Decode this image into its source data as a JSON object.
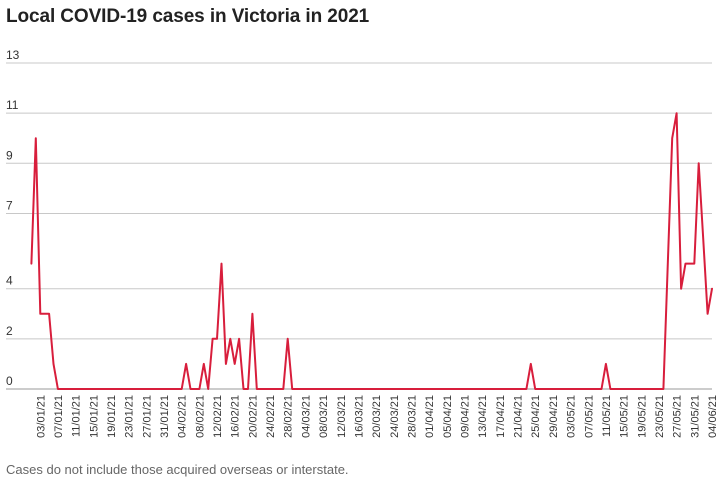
{
  "title": "Local COVID-19 cases in Victoria in 2021",
  "footnote": "Cases do not include those acquired overseas or interstate.",
  "colors": {
    "series": "#d81e3c"
  },
  "chart_data": {
    "type": "line",
    "title": "Local COVID-19 cases in Victoria in 2021",
    "xlabel": "",
    "ylabel": "",
    "ylim": [
      0,
      13
    ],
    "y_ticks": [
      0,
      2,
      4,
      7,
      9,
      11,
      13
    ],
    "y_tick_labels": [
      "0",
      "2",
      "4",
      "7",
      "9",
      "11",
      "13"
    ],
    "grid": true,
    "legend": "none",
    "x_range": [
      "2020-12-31",
      "2021-06-04"
    ],
    "x_ticks": [
      "2021-01-03",
      "2021-01-07",
      "2021-01-11",
      "2021-01-15",
      "2021-01-19",
      "2021-01-23",
      "2021-01-27",
      "2021-01-31",
      "2021-02-04",
      "2021-02-08",
      "2021-02-12",
      "2021-02-16",
      "2021-02-20",
      "2021-02-24",
      "2021-02-28",
      "2021-03-04",
      "2021-03-08",
      "2021-03-12",
      "2021-03-16",
      "2021-03-20",
      "2021-03-24",
      "2021-03-28",
      "2021-04-01",
      "2021-04-05",
      "2021-04-09",
      "2021-04-13",
      "2021-04-17",
      "2021-04-21",
      "2021-04-25",
      "2021-04-29",
      "2021-05-03",
      "2021-05-07",
      "2021-05-11",
      "2021-05-15",
      "2021-05-19",
      "2021-05-23",
      "2021-05-27",
      "2021-05-31",
      "2021-06-04"
    ],
    "x_tick_labels": [
      "03/01/21",
      "07/01/21",
      "11/01/21",
      "15/01/21",
      "19/01/21",
      "23/01/21",
      "27/01/21",
      "31/01/21",
      "04/02/21",
      "08/02/21",
      "12/02/21",
      "16/02/21",
      "20/02/21",
      "24/02/21",
      "28/02/21",
      "04/03/21",
      "08/03/21",
      "12/03/21",
      "16/03/21",
      "20/03/21",
      "24/03/21",
      "28/03/21",
      "01/04/21",
      "05/04/21",
      "09/04/21",
      "13/04/21",
      "17/04/21",
      "21/04/21",
      "25/04/21",
      "29/04/21",
      "03/05/21",
      "07/05/21",
      "11/05/21",
      "15/05/21",
      "19/05/21",
      "23/05/21",
      "27/05/21",
      "31/05/21",
      "04/06/21"
    ],
    "series": [
      {
        "points": [
          [
            "2021-01-01",
            5
          ],
          [
            "2021-01-02",
            10
          ],
          [
            "2021-01-03",
            3
          ],
          [
            "2021-01-04",
            3
          ],
          [
            "2021-01-05",
            3
          ],
          [
            "2021-01-06",
            1
          ],
          [
            "2021-01-07",
            0
          ],
          [
            "2021-02-04",
            0
          ],
          [
            "2021-02-05",
            1
          ],
          [
            "2021-02-06",
            0
          ],
          [
            "2021-02-07",
            0
          ],
          [
            "2021-02-08",
            0
          ],
          [
            "2021-02-09",
            1
          ],
          [
            "2021-02-10",
            0
          ],
          [
            "2021-02-11",
            2
          ],
          [
            "2021-02-12",
            2
          ],
          [
            "2021-02-13",
            5
          ],
          [
            "2021-02-14",
            1
          ],
          [
            "2021-02-15",
            2
          ],
          [
            "2021-02-16",
            1
          ],
          [
            "2021-02-17",
            2
          ],
          [
            "2021-02-18",
            0
          ],
          [
            "2021-02-19",
            0
          ],
          [
            "2021-02-20",
            3
          ],
          [
            "2021-02-21",
            0
          ],
          [
            "2021-02-27",
            0
          ],
          [
            "2021-02-28",
            2
          ],
          [
            "2021-02-29",
            0
          ],
          [
            "2021-04-23",
            0
          ],
          [
            "2021-04-24",
            1
          ],
          [
            "2021-04-25",
            0
          ],
          [
            "2021-05-10",
            0
          ],
          [
            "2021-05-11",
            1
          ],
          [
            "2021-05-12",
            0
          ],
          [
            "2021-05-24",
            0
          ],
          [
            "2021-05-25",
            5
          ],
          [
            "2021-05-26",
            10
          ],
          [
            "2021-05-27",
            11
          ],
          [
            "2021-05-28",
            4
          ],
          [
            "2021-05-29",
            5
          ],
          [
            "2021-05-30",
            5
          ],
          [
            "2021-05-31",
            5
          ],
          [
            "2021-06-01",
            9
          ],
          [
            "2021-06-02",
            6
          ],
          [
            "2021-06-03",
            3
          ],
          [
            "2021-06-04",
            4
          ]
        ]
      }
    ]
  }
}
